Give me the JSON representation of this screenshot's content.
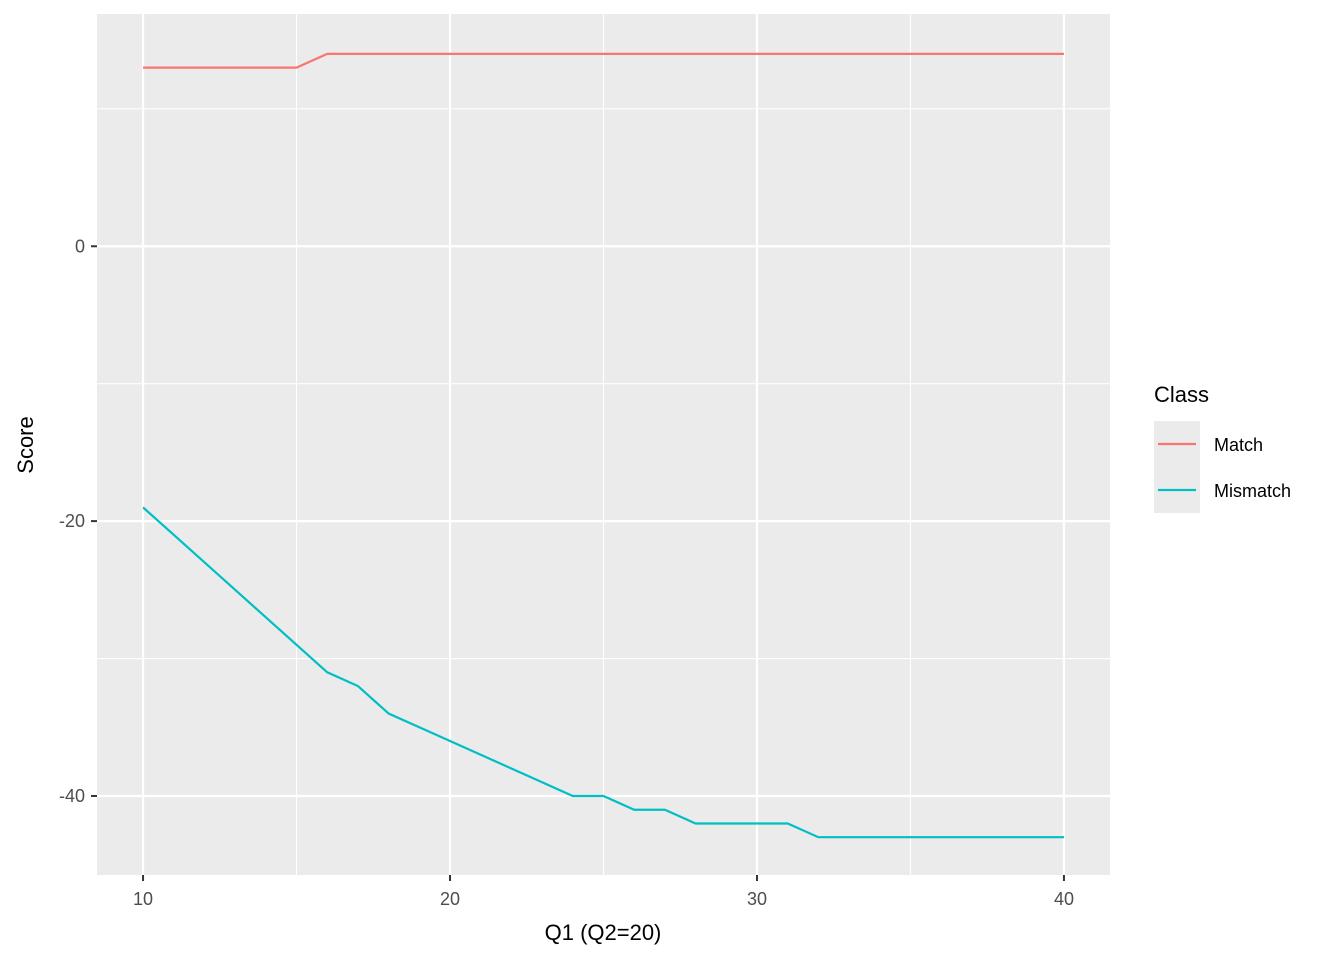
{
  "chart_data": {
    "type": "line",
    "xlabel": "Q1 (Q2=20)",
    "ylabel": "Score",
    "xlim": [
      8.5,
      41.5
    ],
    "ylim": [
      -45.75,
      16.9
    ],
    "x_ticks": [
      10,
      20,
      30,
      40
    ],
    "y_ticks": [
      -40,
      -20,
      0
    ],
    "grid": true,
    "legend": {
      "title": "Class",
      "placement": "right"
    },
    "x": [
      10,
      11,
      12,
      13,
      14,
      15,
      16,
      17,
      18,
      19,
      20,
      21,
      22,
      23,
      24,
      25,
      26,
      27,
      28,
      29,
      30,
      31,
      32,
      33,
      34,
      35,
      36,
      37,
      38,
      39,
      40
    ],
    "series": [
      {
        "name": "Match",
        "color": "#F8766D",
        "values": [
          13,
          13,
          13,
          13,
          13,
          13,
          14,
          14,
          14,
          14,
          14,
          14,
          14,
          14,
          14,
          14,
          14,
          14,
          14,
          14,
          14,
          14,
          14,
          14,
          14,
          14,
          14,
          14,
          14,
          14,
          14
        ]
      },
      {
        "name": "Mismatch",
        "color": "#00BFC4",
        "values": [
          -19,
          -21,
          -23,
          -25,
          -27,
          -29,
          -31,
          -32,
          -34,
          -35,
          -36,
          -37,
          -38,
          -39,
          -40,
          -40,
          -41,
          -41,
          -42,
          -42,
          -42,
          -42,
          -43,
          -43,
          -43,
          -43,
          -43,
          -43,
          -43,
          -43,
          -43
        ]
      }
    ]
  }
}
